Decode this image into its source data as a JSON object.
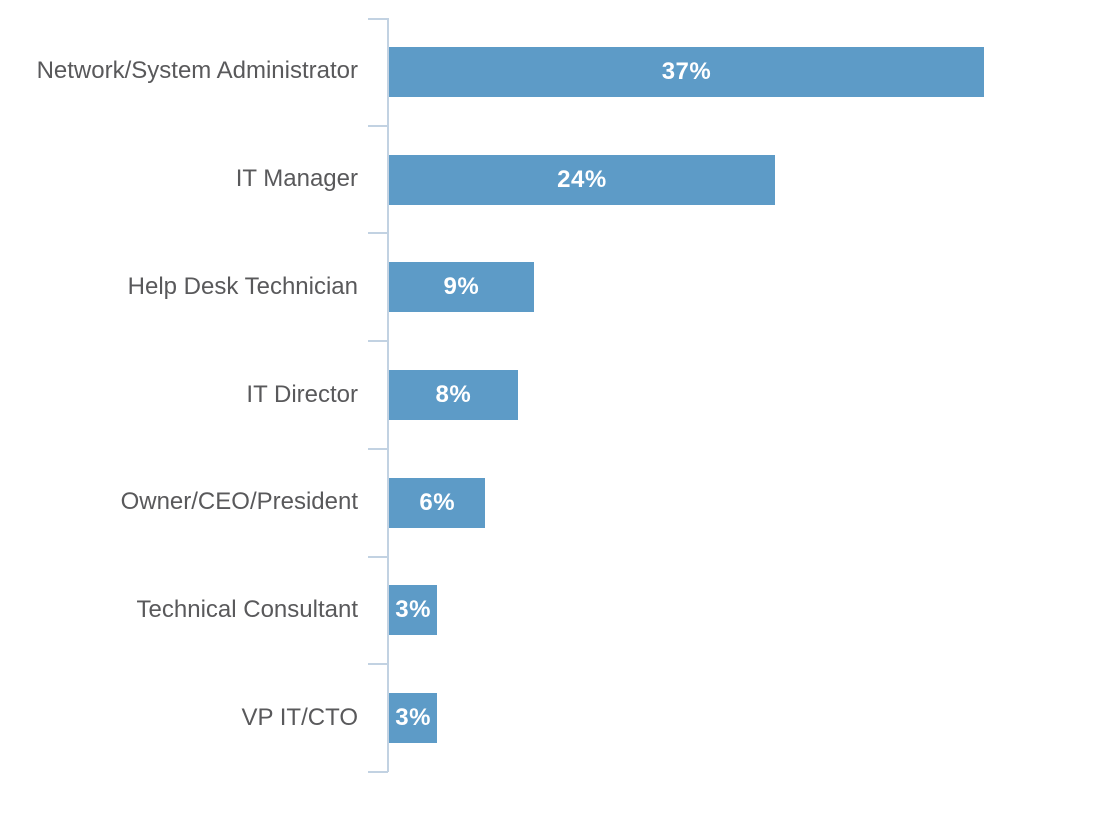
{
  "chart_data": {
    "type": "bar",
    "orientation": "horizontal",
    "title": "",
    "xlabel": "",
    "ylabel": "",
    "categories": [
      "Network/System Administrator",
      "IT Manager",
      "Help Desk Technician",
      "IT Director",
      "Owner/CEO/President",
      "Technical Consultant",
      "VP IT/CTO"
    ],
    "values": [
      37,
      24,
      9,
      8,
      6,
      3,
      3
    ],
    "value_labels": [
      "37%",
      "24%",
      "9%",
      "8%",
      "6%",
      "3%",
      "3%"
    ],
    "xlim": [
      0,
      44
    ],
    "grid": false,
    "legend": false,
    "value_label_position": "center-inside",
    "colors": {
      "bar": "#5D9BC7",
      "axis": "#C2D2E2",
      "category_text": "#59595B",
      "value_text": "#FFFFFF",
      "background": "#FFFFFF"
    }
  }
}
